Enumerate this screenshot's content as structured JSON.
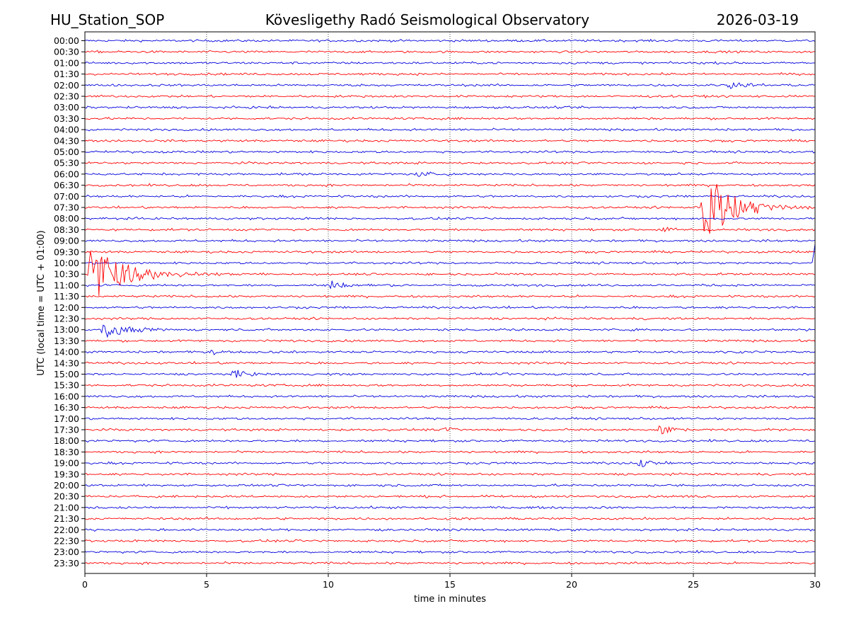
{
  "chart_data": {
    "type": "line",
    "title": "Kövesligethy Radó Seismological Observatory",
    "station": "HU_Station_SOP",
    "date": "2026-03-19",
    "xlabel": "time in minutes",
    "ylabel": "UTC (local time = UTC + 01:00)",
    "xlim": [
      0,
      30
    ],
    "x_ticks": [
      0,
      5,
      10,
      15,
      20,
      25,
      30
    ],
    "x_tick_labels": [
      "0",
      "5",
      "10",
      "15",
      "20",
      "25",
      "30"
    ],
    "grid": "vertical dotted at x ticks",
    "row_labels": [
      "00:00",
      "00:30",
      "01:00",
      "01:30",
      "02:00",
      "02:30",
      "03:00",
      "03:30",
      "04:00",
      "04:30",
      "05:00",
      "05:30",
      "06:00",
      "06:30",
      "07:00",
      "07:30",
      "08:00",
      "08:30",
      "09:00",
      "09:30",
      "10:00",
      "10:30",
      "11:00",
      "11:30",
      "12:00",
      "12:30",
      "13:00",
      "13:30",
      "14:00",
      "14:30",
      "15:00",
      "15:30",
      "16:00",
      "16:30",
      "17:00",
      "17:30",
      "18:00",
      "18:30",
      "19:00",
      "19:30",
      "20:00",
      "20:30",
      "21:00",
      "21:30",
      "22:00",
      "22:30",
      "23:00",
      "23:30"
    ],
    "trace_colors": [
      "#0000dd",
      "#ff0000"
    ],
    "noise_amplitude": 0.09,
    "events": [
      {
        "row": 4,
        "minute": 26.5,
        "amplitude": 0.3,
        "decay": 1.2
      },
      {
        "row": 12,
        "minute": 13.6,
        "amplitude": 0.3,
        "decay": 0.6
      },
      {
        "row": 15,
        "minute": 25.45,
        "amplitude": 3.3,
        "decay": 1.2
      },
      {
        "row": 17,
        "minute": 23.8,
        "amplitude": 0.3,
        "decay": 0.4
      },
      {
        "row": 20,
        "minute": 30.0,
        "amplitude": 2.2,
        "decay": 0.3
      },
      {
        "row": 21,
        "minute": 0.2,
        "amplitude": 2.4,
        "decay": 1.5
      },
      {
        "row": 22,
        "minute": 10.1,
        "amplitude": 0.4,
        "decay": 0.6
      },
      {
        "row": 26,
        "minute": 0.8,
        "amplitude": 0.9,
        "decay": 0.9
      },
      {
        "row": 28,
        "minute": 5.2,
        "amplitude": 0.35,
        "decay": 0.3
      },
      {
        "row": 30,
        "minute": 6.1,
        "amplitude": 0.45,
        "decay": 0.5
      },
      {
        "row": 35,
        "minute": 23.6,
        "amplitude": 0.6,
        "decay": 0.5
      },
      {
        "row": 35,
        "minute": 14.9,
        "amplitude": 0.3,
        "decay": 0.3
      },
      {
        "row": 38,
        "minute": 22.8,
        "amplitude": 0.45,
        "decay": 0.5
      }
    ]
  }
}
